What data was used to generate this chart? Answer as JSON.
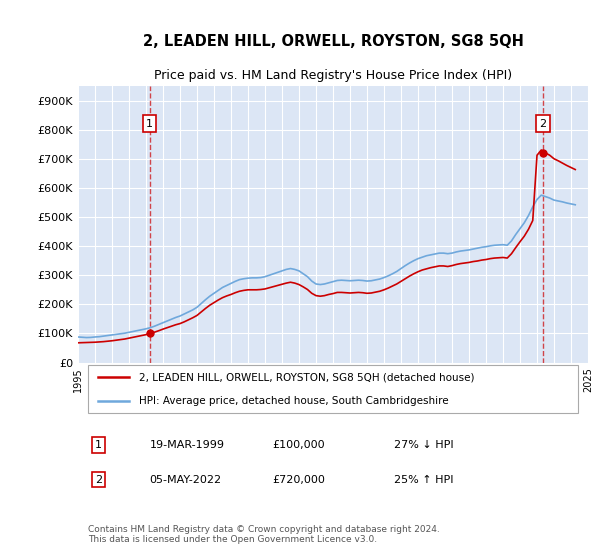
{
  "title": "2, LEADEN HILL, ORWELL, ROYSTON, SG8 5QH",
  "subtitle": "Price paid vs. HM Land Registry's House Price Index (HPI)",
  "background_color": "#dce6f5",
  "plot_background": "#dce6f5",
  "ylim": [
    0,
    950000
  ],
  "yticks": [
    0,
    100000,
    200000,
    300000,
    400000,
    500000,
    600000,
    700000,
    800000,
    900000
  ],
  "ytick_labels": [
    "£0",
    "£100K",
    "£200K",
    "£300K",
    "£400K",
    "£500K",
    "£600K",
    "£700K",
    "£800K",
    "£900K"
  ],
  "hpi_color": "#6fa8dc",
  "price_color": "#cc0000",
  "purchase1": {
    "date_num": 1999.21,
    "price": 100000,
    "label": "1"
  },
  "purchase2": {
    "date_num": 2022.34,
    "price": 720000,
    "label": "2"
  },
  "legend_entry1": "2, LEADEN HILL, ORWELL, ROYSTON, SG8 5QH (detached house)",
  "legend_entry2": "HPI: Average price, detached house, South Cambridgeshire",
  "table_row1": [
    "1",
    "19-MAR-1999",
    "£100,000",
    "27% ↓ HPI"
  ],
  "table_row2": [
    "2",
    "05-MAY-2022",
    "£720,000",
    "25% ↑ HPI"
  ],
  "footer": "Contains HM Land Registry data © Crown copyright and database right 2024.\nThis data is licensed under the Open Government Licence v3.0.",
  "hpi_data": {
    "years": [
      1995.0,
      1995.25,
      1995.5,
      1995.75,
      1996.0,
      1996.25,
      1996.5,
      1996.75,
      1997.0,
      1997.25,
      1997.5,
      1997.75,
      1998.0,
      1998.25,
      1998.5,
      1998.75,
      1999.0,
      1999.25,
      1999.5,
      1999.75,
      2000.0,
      2000.25,
      2000.5,
      2000.75,
      2001.0,
      2001.25,
      2001.5,
      2001.75,
      2002.0,
      2002.25,
      2002.5,
      2002.75,
      2003.0,
      2003.25,
      2003.5,
      2003.75,
      2004.0,
      2004.25,
      2004.5,
      2004.75,
      2005.0,
      2005.25,
      2005.5,
      2005.75,
      2006.0,
      2006.25,
      2006.5,
      2006.75,
      2007.0,
      2007.25,
      2007.5,
      2007.75,
      2008.0,
      2008.25,
      2008.5,
      2008.75,
      2009.0,
      2009.25,
      2009.5,
      2009.75,
      2010.0,
      2010.25,
      2010.5,
      2010.75,
      2011.0,
      2011.25,
      2011.5,
      2011.75,
      2012.0,
      2012.25,
      2012.5,
      2012.75,
      2013.0,
      2013.25,
      2013.5,
      2013.75,
      2014.0,
      2014.25,
      2014.5,
      2014.75,
      2015.0,
      2015.25,
      2015.5,
      2015.75,
      2016.0,
      2016.25,
      2016.5,
      2016.75,
      2017.0,
      2017.25,
      2017.5,
      2017.75,
      2018.0,
      2018.25,
      2018.5,
      2018.75,
      2019.0,
      2019.25,
      2019.5,
      2019.75,
      2020.0,
      2020.25,
      2020.5,
      2020.75,
      2021.0,
      2021.25,
      2021.5,
      2021.75,
      2022.0,
      2022.25,
      2022.5,
      2022.75,
      2023.0,
      2023.25,
      2023.5,
      2023.75,
      2024.0,
      2024.25
    ],
    "values": [
      88000,
      87000,
      86000,
      86500,
      88000,
      89000,
      91000,
      93000,
      95000,
      97000,
      99000,
      101000,
      104000,
      107000,
      110000,
      113000,
      116000,
      120000,
      125000,
      131000,
      137000,
      143000,
      149000,
      155000,
      160000,
      167000,
      174000,
      181000,
      190000,
      203000,
      216000,
      228000,
      238000,
      248000,
      258000,
      265000,
      272000,
      279000,
      285000,
      288000,
      290000,
      291000,
      291000,
      292000,
      295000,
      300000,
      305000,
      310000,
      315000,
      320000,
      323000,
      320000,
      315000,
      305000,
      295000,
      280000,
      270000,
      268000,
      270000,
      274000,
      278000,
      282000,
      283000,
      282000,
      281000,
      282000,
      283000,
      282000,
      280000,
      281000,
      284000,
      287000,
      292000,
      298000,
      305000,
      313000,
      323000,
      333000,
      342000,
      350000,
      357000,
      362000,
      367000,
      370000,
      373000,
      376000,
      376000,
      374000,
      376000,
      380000,
      383000,
      385000,
      387000,
      390000,
      393000,
      396000,
      398000,
      401000,
      403000,
      404000,
      405000,
      403000,
      418000,
      440000,
      460000,
      480000,
      505000,
      535000,
      560000,
      575000,
      570000,
      565000,
      558000,
      555000,
      552000,
      548000,
      545000,
      542000
    ]
  },
  "price_data": {
    "years": [
      1995.0,
      1995.25,
      1995.5,
      1995.75,
      1996.0,
      1996.25,
      1996.5,
      1996.75,
      1997.0,
      1997.25,
      1997.5,
      1997.75,
      1998.0,
      1998.25,
      1998.5,
      1998.75,
      1999.0,
      1999.25,
      1999.5,
      1999.75,
      2000.0,
      2000.25,
      2000.5,
      2000.75,
      2001.0,
      2001.25,
      2001.5,
      2001.75,
      2002.0,
      2002.25,
      2002.5,
      2002.75,
      2003.0,
      2003.25,
      2003.5,
      2003.75,
      2004.0,
      2004.25,
      2004.5,
      2004.75,
      2005.0,
      2005.25,
      2005.5,
      2005.75,
      2006.0,
      2006.25,
      2006.5,
      2006.75,
      2007.0,
      2007.25,
      2007.5,
      2007.75,
      2008.0,
      2008.25,
      2008.5,
      2008.75,
      2009.0,
      2009.25,
      2009.5,
      2009.75,
      2010.0,
      2010.25,
      2010.5,
      2010.75,
      2011.0,
      2011.25,
      2011.5,
      2011.75,
      2012.0,
      2012.25,
      2012.5,
      2012.75,
      2013.0,
      2013.25,
      2013.5,
      2013.75,
      2014.0,
      2014.25,
      2014.5,
      2014.75,
      2015.0,
      2015.25,
      2015.5,
      2015.75,
      2016.0,
      2016.25,
      2016.5,
      2016.75,
      2017.0,
      2017.25,
      2017.5,
      2017.75,
      2018.0,
      2018.25,
      2018.5,
      2018.75,
      2019.0,
      2019.25,
      2019.5,
      2019.75,
      2020.0,
      2020.25,
      2020.5,
      2020.75,
      2021.0,
      2021.25,
      2021.5,
      2021.75,
      2022.0,
      2022.25,
      2022.5,
      2022.75,
      2023.0,
      2023.25,
      2023.5,
      2023.75,
      2024.0,
      2024.25
    ],
    "values": [
      68000,
      68500,
      69000,
      69500,
      70000,
      71000,
      72000,
      73500,
      75000,
      77000,
      79000,
      81000,
      84000,
      87000,
      90000,
      93000,
      96000,
      100000,
      104500,
      109500,
      115000,
      120000,
      125000,
      130000,
      134000,
      140000,
      147000,
      154000,
      162000,
      174000,
      186000,
      197000,
      206000,
      215000,
      223000,
      229000,
      234000,
      240000,
      245000,
      248000,
      250000,
      250000,
      250000,
      251000,
      253000,
      257000,
      261000,
      265000,
      269000,
      273000,
      276000,
      273000,
      268000,
      260000,
      251000,
      238000,
      230000,
      228000,
      230000,
      234000,
      237000,
      241000,
      241000,
      240000,
      239000,
      240000,
      241000,
      240000,
      238000,
      239000,
      242000,
      245000,
      250000,
      256000,
      263000,
      270000,
      279000,
      288000,
      297000,
      305000,
      312000,
      318000,
      322000,
      326000,
      329000,
      332000,
      332000,
      330000,
      333000,
      337000,
      340000,
      342000,
      344000,
      347000,
      349000,
      352000,
      354000,
      357000,
      359000,
      360000,
      361000,
      359000,
      374000,
      395000,
      415000,
      434000,
      458000,
      488000,
      712000,
      730000,
      720000,
      712000,
      700000,
      693000,
      685000,
      677000,
      670000,
      663000
    ]
  }
}
